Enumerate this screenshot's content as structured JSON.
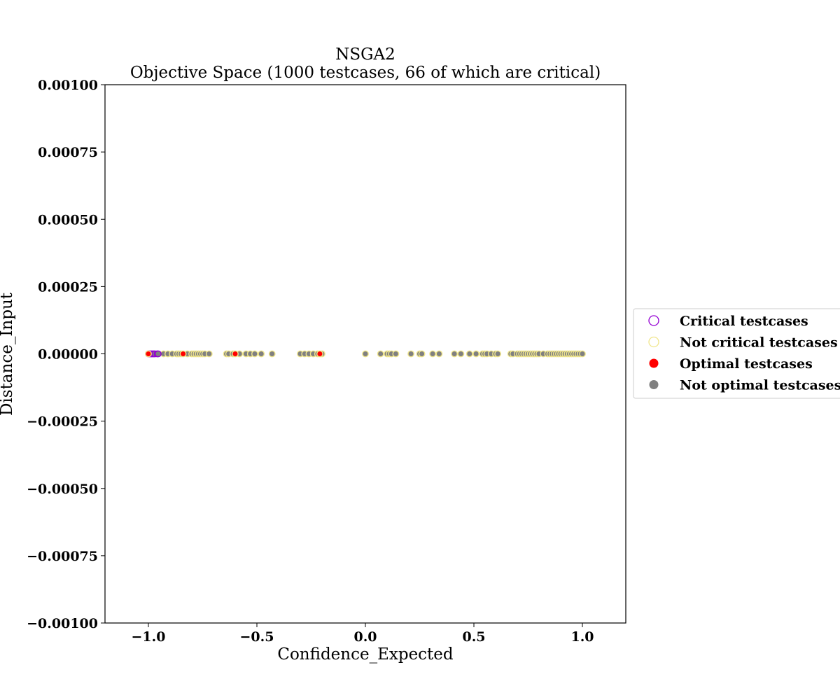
{
  "chart_data": {
    "type": "scatter",
    "title": "NSGA2",
    "subtitle": "Objective Space (1000 testcases, 66 of which are critical)",
    "xlabel": "Confidence_Expected",
    "ylabel": "Distance_Input",
    "xlim": [
      -1.2,
      1.2
    ],
    "ylim": [
      -0.001,
      0.001
    ],
    "x_ticks": [
      -1.0,
      -0.5,
      0.0,
      0.5,
      1.0
    ],
    "x_tick_labels": [
      "−1.0",
      "−0.5",
      "0.0",
      "0.5",
      "1.0"
    ],
    "y_ticks": [
      0.001,
      0.00075,
      0.0005,
      0.00025,
      0.0,
      -0.00025,
      -0.0005,
      -0.00075,
      -0.001
    ],
    "y_tick_labels": [
      "0.00100",
      "0.00075",
      "0.00050",
      "0.00025",
      "0.00000",
      "−0.00025",
      "−0.00050",
      "−0.00075",
      "−0.00100"
    ],
    "grid": false,
    "legend_position": "right",
    "legend": [
      {
        "label": "Critical testcases",
        "marker": "hollow",
        "color": "#9400d3"
      },
      {
        "label": "Not critical testcases",
        "marker": "hollow",
        "color": "#f0e68c"
      },
      {
        "label": "Optimal testcases",
        "marker": "filled",
        "color": "#ff0000"
      },
      {
        "label": "Not optimal testcases",
        "marker": "filled",
        "color": "#808080"
      }
    ],
    "series": [
      {
        "name": "Not critical testcases",
        "edge_color": "#f0e68c",
        "fill_color": "#808080",
        "x": [
          -0.93,
          -0.91,
          -0.89,
          -0.87,
          -0.86,
          -0.85,
          -0.82,
          -0.8,
          -0.79,
          -0.78,
          -0.77,
          -0.76,
          -0.75,
          -0.74,
          -0.72,
          -0.64,
          -0.63,
          -0.61,
          -0.58,
          -0.55,
          -0.53,
          -0.51,
          -0.48,
          -0.43,
          -0.3,
          -0.28,
          -0.26,
          -0.24,
          -0.22,
          -0.2,
          0.0,
          0.07,
          0.1,
          0.11,
          0.12,
          0.14,
          0.21,
          0.25,
          0.26,
          0.31,
          0.34,
          0.41,
          0.44,
          0.48,
          0.51,
          0.54,
          0.55,
          0.56,
          0.58,
          0.6,
          0.61,
          0.67,
          0.68,
          0.7,
          0.71,
          0.72,
          0.73,
          0.74,
          0.75,
          0.76,
          0.77,
          0.78,
          0.79,
          0.8,
          0.82,
          0.84,
          0.85,
          0.86,
          0.87,
          0.88,
          0.89,
          0.9,
          0.91,
          0.92,
          0.93,
          0.94,
          0.95,
          0.96,
          0.97,
          0.98,
          0.99,
          1.0
        ],
        "y_value": 0.0
      },
      {
        "name": "Critical testcases",
        "edge_color": "#9400d3",
        "fill_color": "#808080",
        "x": [
          -1.0,
          -0.995,
          -0.99,
          -0.985,
          -0.98,
          -0.975,
          -0.97,
          -0.96,
          -0.955
        ],
        "y_value": 0.0
      },
      {
        "name": "Optimal testcases",
        "edge_color": "#f0e68c",
        "fill_color": "#ff0000",
        "x": [
          -1.0,
          -0.84,
          -0.6,
          -0.21
        ],
        "y_value": 0.0
      }
    ]
  }
}
